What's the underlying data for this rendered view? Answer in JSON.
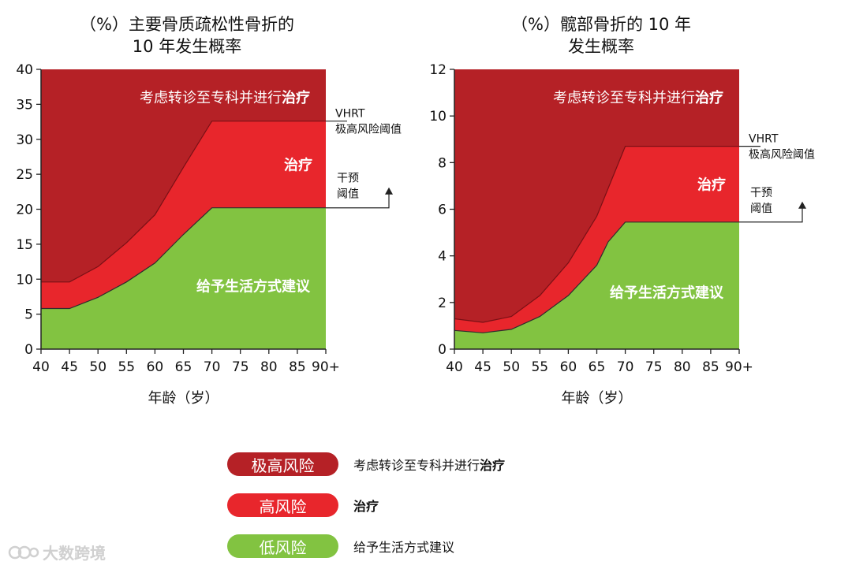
{
  "colors": {
    "very_high": "#b52126",
    "high": "#e8262c",
    "low": "#82c341",
    "axis": "#222222"
  },
  "chart_data": [
    {
      "type": "area",
      "title_lines": [
        "（%）主要骨质疏松性骨折的",
        "10 年发生概率"
      ],
      "xlabel": "年龄（岁）",
      "x": [
        40,
        45,
        50,
        55,
        60,
        65,
        70,
        75,
        80,
        85,
        90
      ],
      "x_tick_labels": [
        "40",
        "45",
        "50",
        "55",
        "60",
        "65",
        "70",
        "75",
        "80",
        "85",
        "90+"
      ],
      "ylim": [
        0,
        40
      ],
      "y_ticks": [
        0,
        5,
        10,
        15,
        20,
        25,
        30,
        35,
        40
      ],
      "upper_threshold": [
        [
          40,
          9.6
        ],
        [
          45,
          9.6
        ],
        [
          50,
          11.8
        ],
        [
          55,
          15.2
        ],
        [
          60,
          19.2
        ],
        [
          65,
          26
        ],
        [
          70,
          32.6
        ],
        [
          90,
          32.6
        ]
      ],
      "intervention_threshold": [
        [
          40,
          5.8
        ],
        [
          45,
          5.8
        ],
        [
          50,
          7.4
        ],
        [
          55,
          9.6
        ],
        [
          60,
          12.3
        ],
        [
          65,
          16.4
        ],
        [
          70,
          20.2
        ],
        [
          90,
          20.2
        ]
      ],
      "zone_labels": [
        {
          "text": "考虑转诊至专科并进行",
          "bold": "治疗"
        },
        {
          "text": "",
          "bold": "治疗"
        },
        {
          "text": "给予生活方式建议",
          "bold": ""
        }
      ],
      "annotations": {
        "vhrt_line1": "VHRT",
        "vhrt_line2": "极高风险阈值",
        "intervention_line1": "干预",
        "intervention_line2": "阈值"
      }
    },
    {
      "type": "area",
      "title_lines": [
        "（%）髋部骨折的 10 年",
        "发生概率"
      ],
      "xlabel": "年龄（岁）",
      "x": [
        40,
        45,
        50,
        55,
        60,
        65,
        70,
        75,
        80,
        85,
        90
      ],
      "x_tick_labels": [
        "40",
        "45",
        "50",
        "55",
        "60",
        "65",
        "70",
        "75",
        "80",
        "85",
        "90+"
      ],
      "ylim": [
        0,
        12
      ],
      "y_ticks": [
        0,
        2,
        4,
        6,
        8,
        10,
        12
      ],
      "upper_threshold": [
        [
          40,
          1.3
        ],
        [
          45,
          1.15
        ],
        [
          50,
          1.4
        ],
        [
          55,
          2.3
        ],
        [
          60,
          3.7
        ],
        [
          65,
          5.7
        ],
        [
          70,
          8.7
        ],
        [
          90,
          8.7
        ]
      ],
      "intervention_threshold": [
        [
          40,
          0.8
        ],
        [
          45,
          0.7
        ],
        [
          50,
          0.85
        ],
        [
          55,
          1.4
        ],
        [
          60,
          2.3
        ],
        [
          65,
          3.6
        ],
        [
          67,
          4.6
        ],
        [
          70,
          5.45
        ],
        [
          90,
          5.45
        ]
      ],
      "zone_labels": [
        {
          "text": "考虑转诊至专科并进行",
          "bold": "治疗"
        },
        {
          "text": "",
          "bold": "治疗"
        },
        {
          "text": "给予生活方式建议",
          "bold": ""
        }
      ],
      "annotations": {
        "vhrt_line1": "VHRT",
        "vhrt_line2": "极高风险阈值",
        "intervention_line1": "干预",
        "intervention_line2": "阈值"
      }
    }
  ],
  "legend": [
    {
      "label": "极高风险",
      "desc": "考虑转诊至专科并进行",
      "desc_bold": "治疗",
      "color_key": "very_high"
    },
    {
      "label": "高风险",
      "desc": "",
      "desc_bold": "治疗",
      "color_key": "high"
    },
    {
      "label": "低风险",
      "desc": "给予生活方式建议",
      "desc_bold": "",
      "color_key": "low"
    }
  ],
  "watermark": "大数跨境"
}
